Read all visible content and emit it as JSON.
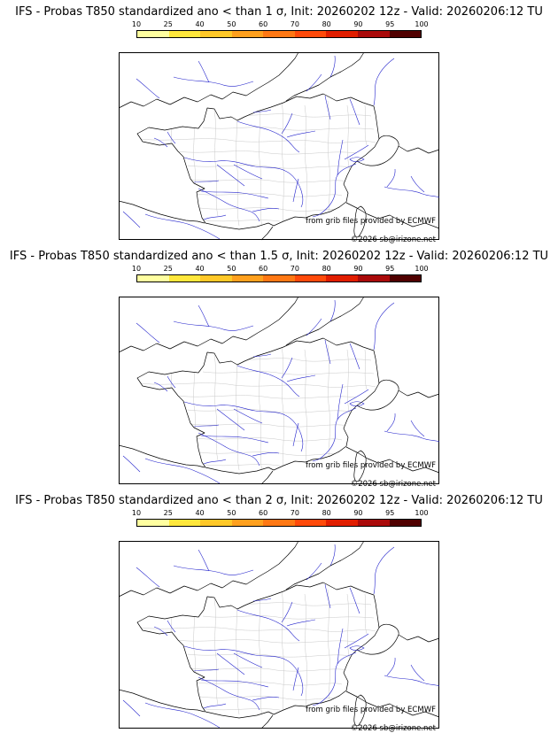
{
  "panels": [
    {
      "title": "IFS - Probas T850  standardized ano < than 1 σ, Init: 20260202 12z - Valid: 20260206:12 TU",
      "credit": "from grib files provided by ECMWF",
      "copyright": "©2026 sb@irizone.net"
    },
    {
      "title": "IFS - Probas T850  standardized ano < than 1.5 σ, Init: 20260202 12z - Valid: 20260206:12 TU",
      "credit": "from grib files provided by ECMWF",
      "copyright": "©2026 sb@irizone.net"
    },
    {
      "title": "IFS - Probas T850  standardized ano < than 2 σ, Init: 20260202 12z - Valid: 20260206:12 TU",
      "credit": "from grib files provided by ECMWF",
      "copyright": "©2026 sb@irizone.net"
    }
  ],
  "colorbar": {
    "tick_labels": [
      "10",
      "25",
      "40",
      "50",
      "60",
      "70",
      "80",
      "90",
      "95",
      "100"
    ],
    "segment_colors": [
      "#ffffa0",
      "#ffe73c",
      "#ffc828",
      "#ffa01e",
      "#ff7814",
      "#ff4a0a",
      "#e11e00",
      "#aa0a0a",
      "#500000"
    ]
  },
  "map_colors": {
    "coastline": "#000000",
    "river": "#2323cc",
    "department_boundary": "#c8c8c8"
  }
}
